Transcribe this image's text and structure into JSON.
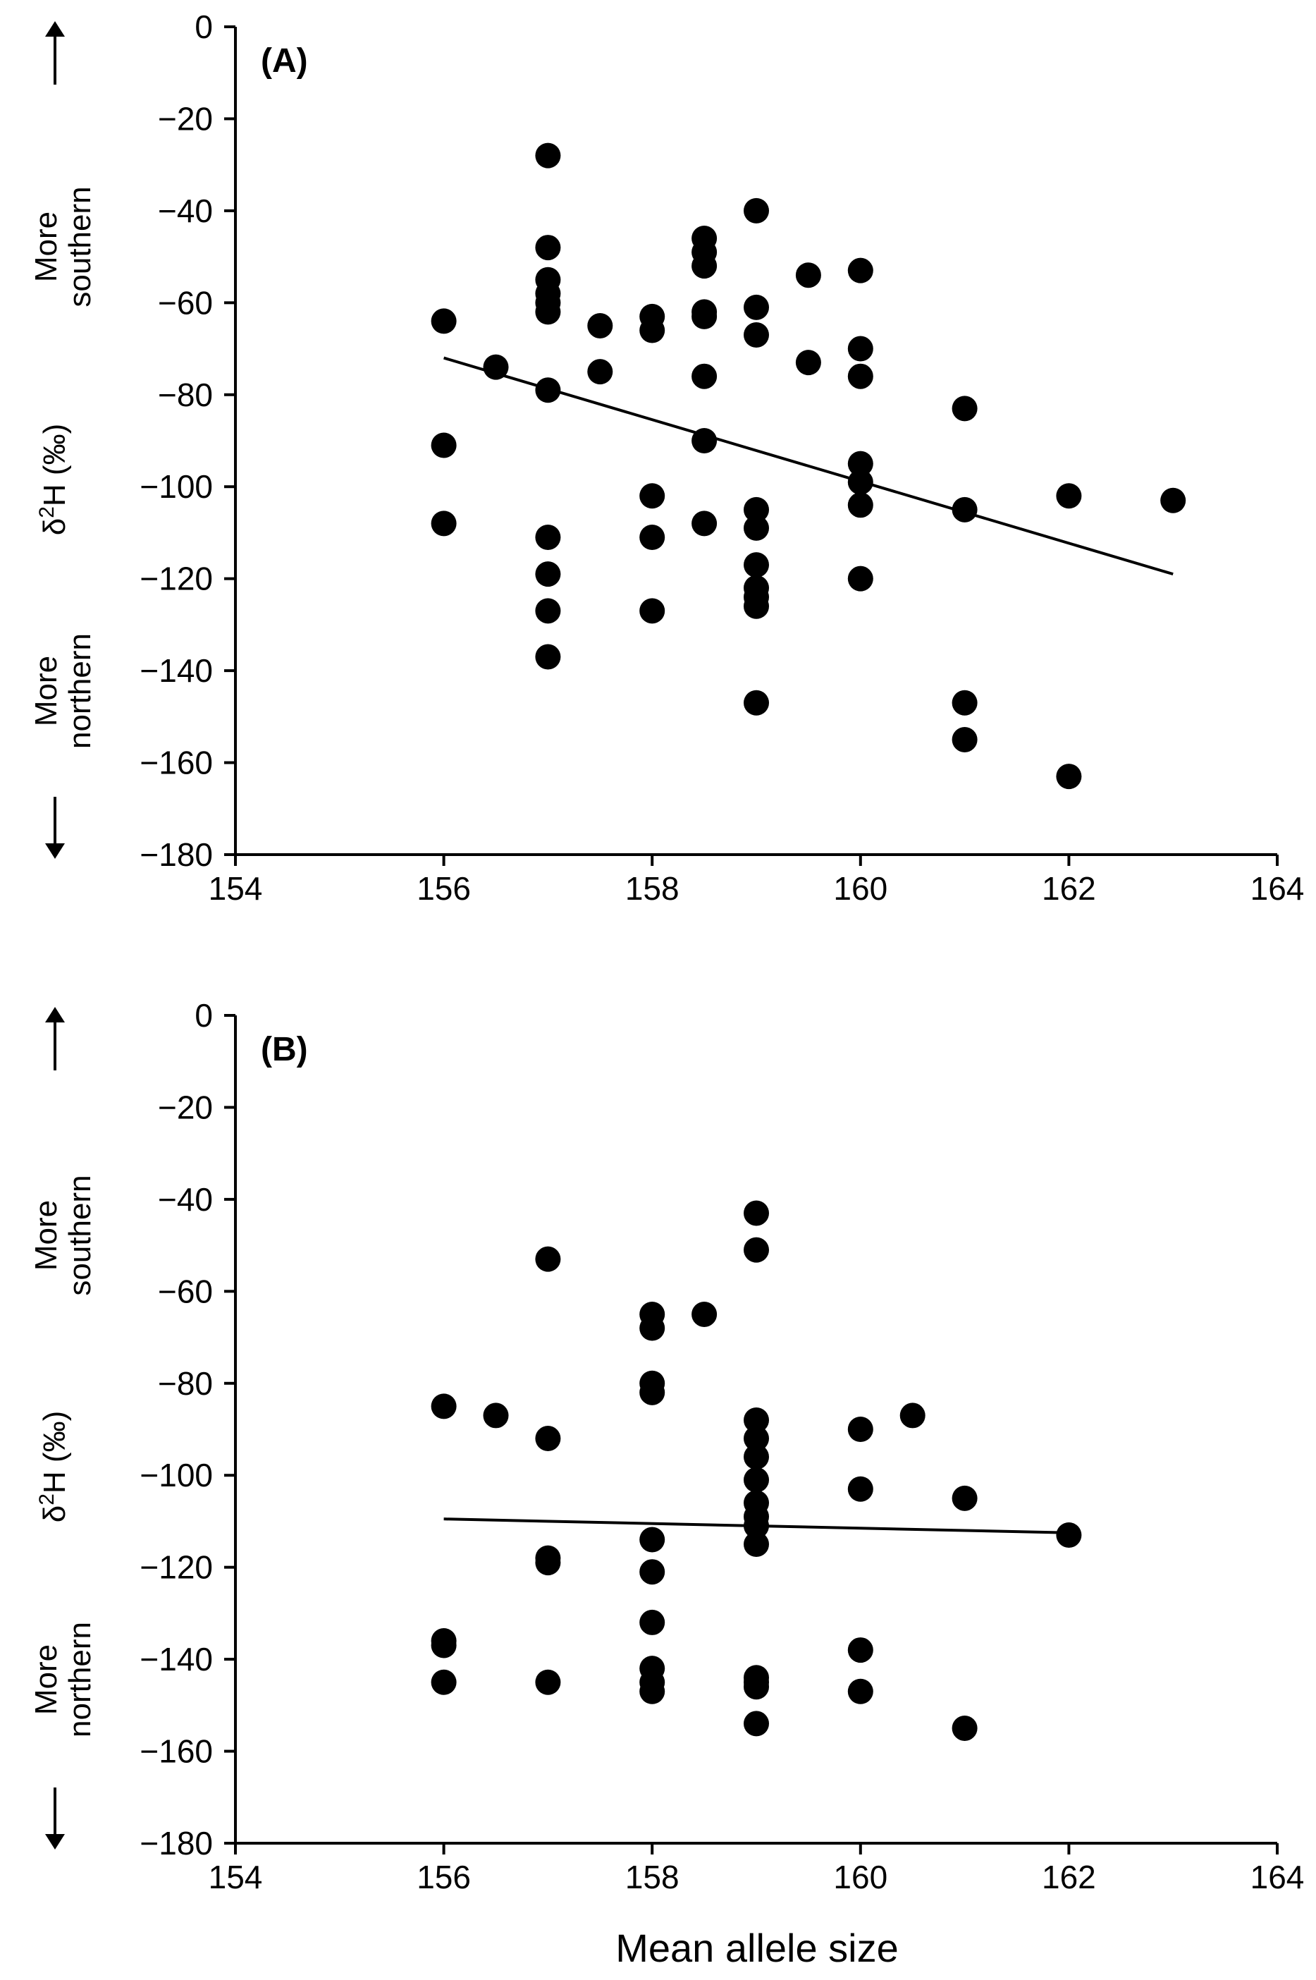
{
  "chart_data": [
    {
      "type": "scatter",
      "panel_label": "(A)",
      "xlabel": "",
      "ylabel": "δ²H (‰)",
      "ylabel_base": "δ",
      "ylabel_sup": "2",
      "ylabel_rest": "H (‰)",
      "direction_labels": {
        "up_line1": "More",
        "up_line2": "southern",
        "down_line1": "More",
        "down_line2": "northern"
      },
      "xlim": [
        154,
        164
      ],
      "ylim": [
        -180,
        0
      ],
      "xticks": [
        "154",
        "156",
        "158",
        "160",
        "162",
        "164"
      ],
      "yticks": [
        "0",
        "−20",
        "−40",
        "−60",
        "−80",
        "−100",
        "−120",
        "−140",
        "−160",
        "−180"
      ],
      "x": [
        156,
        156,
        156,
        156.5,
        157,
        157,
        157,
        157,
        157,
        157,
        157,
        157,
        157,
        157,
        157,
        157.5,
        157.5,
        158,
        158,
        158,
        158,
        158,
        158.5,
        158.5,
        158.5,
        158.5,
        158.5,
        158.5,
        158.5,
        158.5,
        159,
        159,
        159,
        159,
        159,
        159,
        159,
        159,
        159,
        159,
        159.5,
        159.5,
        160,
        160,
        160,
        160,
        160,
        160,
        160,
        161,
        161,
        161,
        161,
        162,
        162,
        163
      ],
      "y": [
        -64,
        -91,
        -108,
        -74,
        -28,
        -48,
        -55,
        -58,
        -60,
        -62,
        -79,
        -111,
        -119,
        -127,
        -137,
        -65,
        -75,
        -63,
        -66,
        -102,
        -111,
        -127,
        -46,
        -49,
        -52,
        -62,
        -63,
        -76,
        -90,
        -108,
        -40,
        -61,
        -67,
        -105,
        -109,
        -117,
        -122,
        -124,
        -126,
        -147,
        -54,
        -73,
        -53,
        -70,
        -76,
        -95,
        -99,
        -104,
        -120,
        -83,
        -105,
        -147,
        -155,
        -102,
        -163,
        -103
      ],
      "trendline": {
        "x": [
          156,
          163
        ],
        "y": [
          -72,
          -119
        ]
      },
      "grid": false,
      "legend": "none"
    },
    {
      "type": "scatter",
      "panel_label": "(B)",
      "xlabel": "Mean allele size",
      "ylabel": "δ²H (‰)",
      "ylabel_base": "δ",
      "ylabel_sup": "2",
      "ylabel_rest": "H (‰)",
      "direction_labels": {
        "up_line1": "More",
        "up_line2": "southern",
        "down_line1": "More",
        "down_line2": "northern"
      },
      "xlim": [
        154,
        164
      ],
      "ylim": [
        -180,
        0
      ],
      "xticks": [
        "154",
        "156",
        "158",
        "160",
        "162",
        "164"
      ],
      "yticks": [
        "0",
        "−20",
        "−40",
        "−60",
        "−80",
        "−100",
        "−120",
        "−140",
        "−160",
        "−180"
      ],
      "x": [
        156,
        156,
        156,
        156,
        156.5,
        157,
        157,
        157,
        157,
        157,
        158,
        158,
        158,
        158,
        158,
        158,
        158,
        158,
        158,
        158,
        158.5,
        159,
        159,
        159,
        159,
        159,
        159,
        159,
        159,
        159,
        159,
        159,
        159,
        159,
        159,
        160,
        160,
        160,
        160,
        160.5,
        161,
        161,
        162
      ],
      "y": [
        -85,
        -136,
        -137,
        -145,
        -87,
        -53,
        -92,
        -118,
        -119,
        -145,
        -65,
        -68,
        -80,
        -82,
        -114,
        -121,
        -132,
        -142,
        -145,
        -147,
        -65,
        -43,
        -51,
        -88,
        -92,
        -96,
        -101,
        -106,
        -109,
        -111,
        -115,
        -144,
        -146,
        -154,
        -145,
        -90,
        -103,
        -138,
        -147,
        -87,
        -105,
        -155,
        -113
      ],
      "trendline": {
        "x": [
          156,
          162
        ],
        "y": [
          -109.5,
          -112.5
        ]
      },
      "grid": false,
      "legend": "none"
    }
  ],
  "colors": {
    "ink": "#000000",
    "background": "#ffffff"
  }
}
